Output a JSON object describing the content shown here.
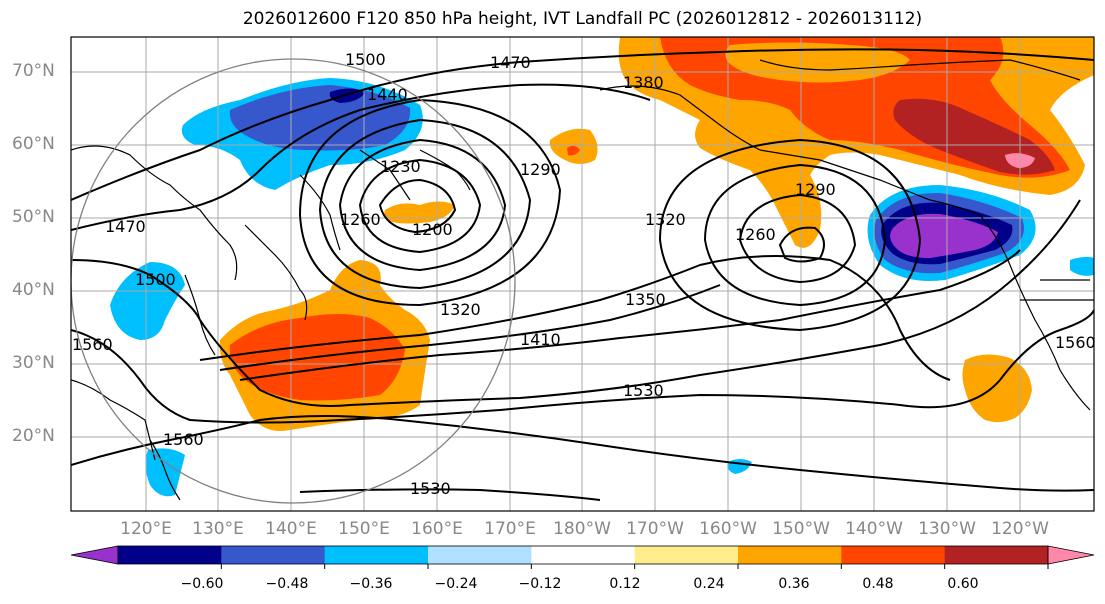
{
  "title": "2026012600 F120 850 hPa height, IVT Landfall PC (2026012812 - 2026013112)",
  "lat_labels": [
    "70°N",
    "60°N",
    "50°N",
    "40°N",
    "30°N",
    "20°N"
  ],
  "lon_labels": [
    "120°E",
    "130°E",
    "140°E",
    "150°E",
    "160°E",
    "170°E",
    "180°W",
    "170°W",
    "160°W",
    "150°W",
    "140°W",
    "130°W",
    "120°W"
  ],
  "contour_labels": [
    "1500",
    "1470",
    "1440",
    "1380",
    "1230",
    "1290",
    "1260",
    "1320",
    "1200",
    "1290",
    "1260",
    "1470",
    "1500",
    "1320",
    "1350",
    "1410",
    "1560",
    "1530",
    "1560",
    "1560",
    "1530"
  ],
  "colorbar": {
    "ticks": [
      "−0.60",
      "−0.48",
      "−0.36",
      "−0.24",
      "−0.12",
      "0.12",
      "0.24",
      "0.36",
      "0.48",
      "0.60"
    ],
    "colors": [
      "#9932cc",
      "#00008b",
      "#3658cc",
      "#00bfff",
      "#b0e0ff",
      "#ffffff",
      "#ffec8b",
      "#ffa500",
      "#ff4500",
      "#b22222",
      "#ff88aa"
    ]
  }
}
